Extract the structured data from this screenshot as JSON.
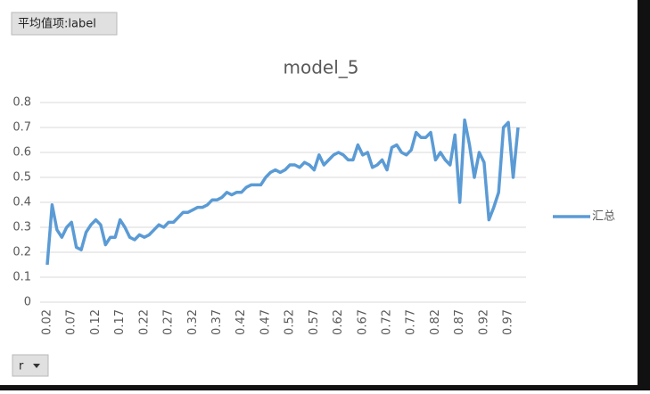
{
  "field_buttons": {
    "value_field": "平均值项:label",
    "axis_field": "r"
  },
  "chart_data": {
    "type": "line",
    "title": "model_5",
    "categories": [
      "0.02",
      null,
      null,
      null,
      null,
      "0.07",
      null,
      null,
      null,
      null,
      "0.12",
      null,
      null,
      null,
      null,
      "0.17",
      null,
      null,
      null,
      null,
      "0.22",
      null,
      null,
      null,
      null,
      "0.27",
      null,
      null,
      null,
      null,
      "0.32",
      null,
      null,
      null,
      null,
      "0.37",
      null,
      null,
      null,
      null,
      "0.42",
      null,
      null,
      null,
      null,
      "0.47",
      null,
      null,
      null,
      null,
      "0.52",
      null,
      null,
      null,
      null,
      "0.57",
      null,
      null,
      null,
      null,
      "0.62",
      null,
      null,
      null,
      null,
      "0.67",
      null,
      null,
      null,
      null,
      "0.72",
      null,
      null,
      null,
      null,
      "0.77",
      null,
      null,
      null,
      null,
      "0.82",
      null,
      null,
      null,
      null,
      "0.87",
      null,
      null,
      null,
      null,
      "0.92",
      null,
      null,
      null,
      null,
      "0.97",
      null,
      null
    ],
    "series": [
      {
        "name": "汇总",
        "color": "#5b9bd5",
        "values": [
          0.15,
          0.39,
          0.29,
          0.26,
          0.3,
          0.32,
          0.22,
          0.21,
          0.28,
          0.31,
          0.33,
          0.31,
          0.23,
          0.26,
          0.26,
          0.33,
          0.3,
          0.26,
          0.25,
          0.27,
          0.26,
          0.27,
          0.29,
          0.31,
          0.3,
          0.32,
          0.32,
          0.34,
          0.36,
          0.36,
          0.37,
          0.38,
          0.38,
          0.39,
          0.41,
          0.41,
          0.42,
          0.44,
          0.43,
          0.44,
          0.44,
          0.46,
          0.47,
          0.47,
          0.47,
          0.5,
          0.52,
          0.53,
          0.52,
          0.53,
          0.55,
          0.55,
          0.54,
          0.56,
          0.55,
          0.53,
          0.59,
          0.55,
          0.57,
          0.59,
          0.6,
          0.59,
          0.57,
          0.57,
          0.63,
          0.59,
          0.6,
          0.54,
          0.55,
          0.57,
          0.53,
          0.62,
          0.63,
          0.6,
          0.59,
          0.61,
          0.68,
          0.66,
          0.66,
          0.68,
          0.57,
          0.6,
          0.57,
          0.55,
          0.67,
          0.4,
          0.73,
          0.63,
          0.5,
          0.6,
          0.56,
          0.33,
          0.38,
          0.44,
          0.7,
          0.72,
          0.5,
          0.7
        ]
      }
    ],
    "ylim": [
      0,
      0.8
    ],
    "yticks": [
      0,
      0.1,
      0.2,
      0.3,
      0.4,
      0.5,
      0.6,
      0.7,
      0.8
    ],
    "grid": true,
    "legend": "right"
  }
}
